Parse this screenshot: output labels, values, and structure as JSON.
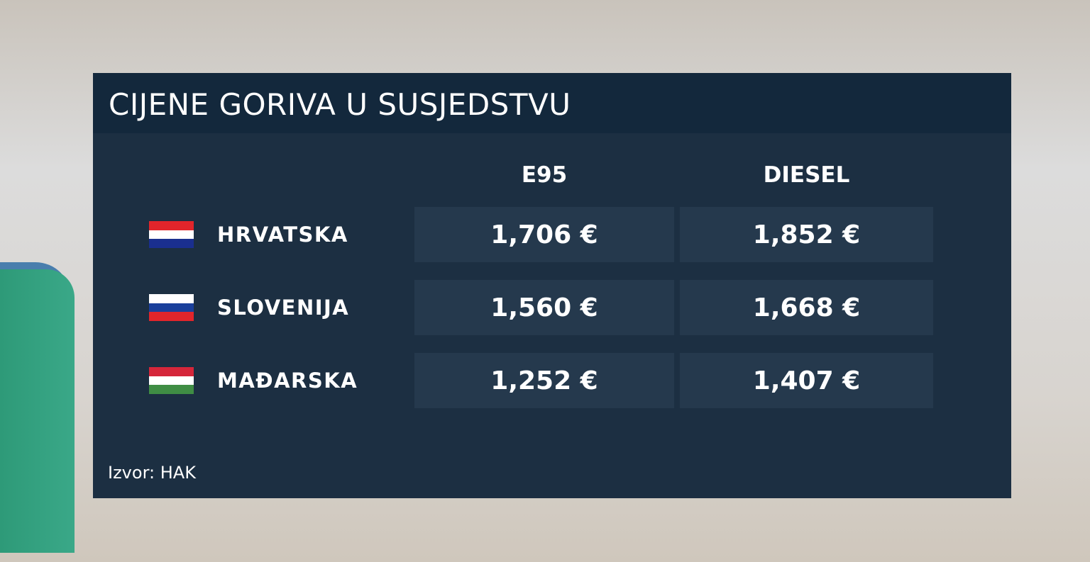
{
  "title": "CIJENE GORIVA U SUSJEDSTVU",
  "source": "Izvor: HAK",
  "chart_data": {
    "type": "table",
    "columns": [
      "E95",
      "DIESEL"
    ],
    "rows": [
      {
        "country": "HRVATSKA",
        "flag": "croatia-flag",
        "flag_colors": [
          "#e1252b",
          "#ffffff",
          "#1a2f8f"
        ],
        "e95": "1,706 €",
        "diesel": "1,852 €"
      },
      {
        "country": "SLOVENIJA",
        "flag": "slovenia-flag",
        "flag_colors": [
          "#ffffff",
          "#1a3f9b",
          "#e1252b"
        ],
        "e95": "1,560 €",
        "diesel": "1,668 €"
      },
      {
        "country": "MAĐARSKA",
        "flag": "hungary-flag",
        "flag_colors": [
          "#d5263a",
          "#ffffff",
          "#3f8d44"
        ],
        "e95": "1,252 €",
        "diesel": "1,407 €"
      }
    ]
  },
  "colors": {
    "panel": "#1c2f42",
    "title_bar": "#13283c",
    "cell": "#25394d"
  }
}
